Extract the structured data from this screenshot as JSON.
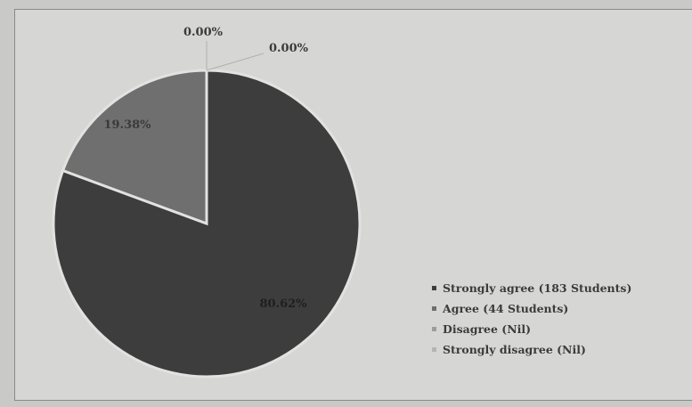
{
  "chart_data": {
    "type": "pie",
    "slices": [
      {
        "label": "Strongly agree (183 Students)",
        "value": 80.62,
        "data_label": "80.62%",
        "color": "#3d3d3d"
      },
      {
        "label": "Agree (44 Students)",
        "value": 19.38,
        "data_label": "19.38%",
        "color": "#6f6f6f"
      },
      {
        "label": "Disagree (Nil)",
        "value": 0.0,
        "data_label": "0.00%",
        "color": "#9c9c9c"
      },
      {
        "label": "Strongly disagree (Nil)",
        "value": 0.0,
        "data_label": "0.00%",
        "color": "#b4b4b4"
      }
    ],
    "legend_position": "bottom-right",
    "title": ""
  }
}
